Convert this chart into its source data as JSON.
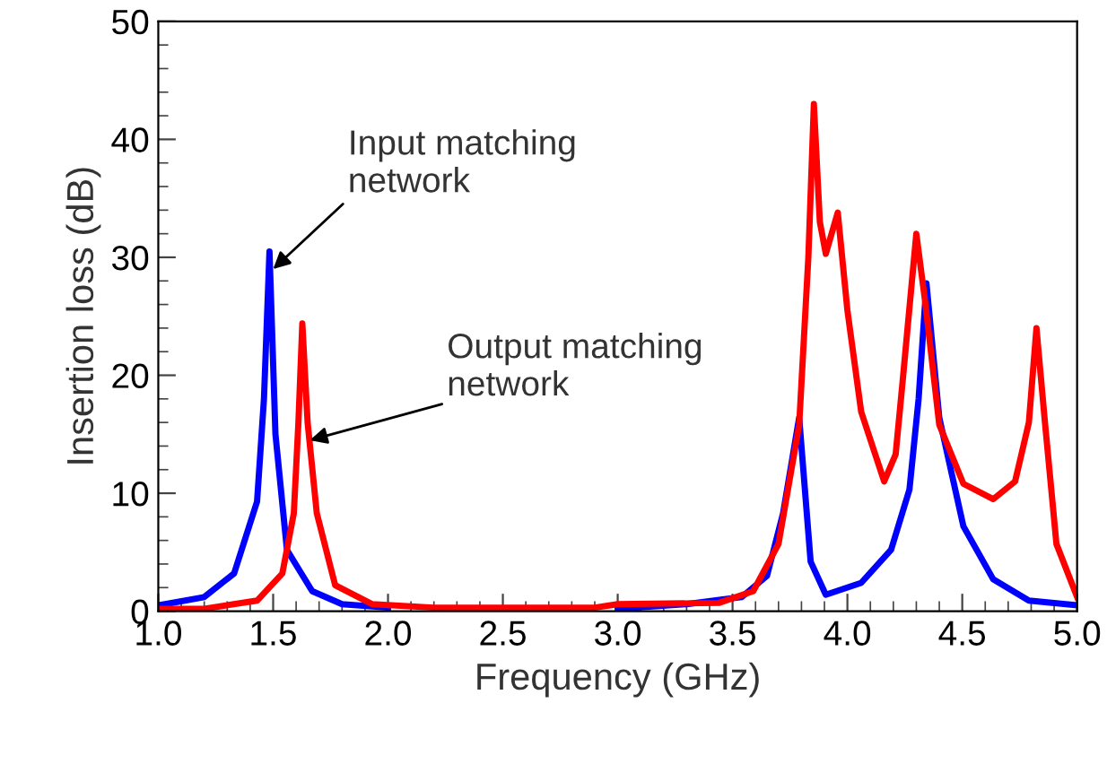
{
  "chart_data": {
    "type": "line",
    "xlabel": "Frequency (GHz)",
    "ylabel": "Insertion loss (dB)",
    "xlim": [
      1.0,
      5.0
    ],
    "ylim": [
      0,
      50
    ],
    "xticks": [
      {
        "value": 1.0,
        "label": "1.0"
      },
      {
        "value": 1.5,
        "label": "1.5"
      },
      {
        "value": 2.0,
        "label": "2.0"
      },
      {
        "value": 2.5,
        "label": "2.5"
      },
      {
        "value": 3.0,
        "label": "3.0"
      },
      {
        "value": 3.5,
        "label": "3.5"
      },
      {
        "value": 4.0,
        "label": "4.0"
      },
      {
        "value": 4.5,
        "label": "4.5"
      },
      {
        "value": 5.0,
        "label": "5.0"
      }
    ],
    "yticks": [
      0,
      10,
      20,
      30,
      40,
      50
    ],
    "grid": false,
    "legend": false,
    "marker": "none",
    "line_style": "solid",
    "series": [
      {
        "color": "#0000ff",
        "x": [
          1.0,
          1.03,
          1.2,
          1.33,
          1.43,
          1.46,
          1.484,
          1.51,
          1.56,
          1.67,
          1.8,
          2.0,
          2.5,
          3.0,
          3.3,
          3.54,
          3.65,
          3.72,
          3.79,
          3.84,
          3.906,
          4.06,
          4.19,
          4.27,
          4.31,
          4.344,
          4.4,
          4.505,
          4.635,
          4.79,
          5.0
        ],
        "values": [
          0.5,
          0.6,
          1.2,
          3.2,
          9.3,
          18,
          30.5,
          15,
          5.2,
          1.7,
          0.6,
          0.3,
          null,
          0.2,
          0.6,
          1.2,
          3.0,
          8.3,
          16.4,
          4.2,
          1.4,
          2.4,
          5.2,
          10.3,
          18,
          27.8,
          16.4,
          7.2,
          2.7,
          0.9,
          0.5
        ]
      },
      {
        "color": "#ff0000",
        "x": [
          1.0,
          1.2,
          1.43,
          1.54,
          1.59,
          1.61,
          1.627,
          1.65,
          1.69,
          1.77,
          1.93,
          2.2,
          2.9,
          3.0,
          3.44,
          3.59,
          3.7,
          3.79,
          3.83,
          3.854,
          3.88,
          3.906,
          3.958,
          4.0,
          4.06,
          4.16,
          4.21,
          4.24,
          4.3,
          4.34,
          4.4,
          4.505,
          4.635,
          4.73,
          4.79,
          4.823,
          4.86,
          4.91,
          5.0
        ],
        "values": [
          0.2,
          0.2,
          0.9,
          3.2,
          8.3,
          16,
          24.4,
          16,
          8.3,
          2.2,
          0.6,
          0.3,
          0.3,
          0.6,
          0.7,
          1.7,
          5.7,
          15.8,
          30,
          43.0,
          33,
          30.3,
          33.8,
          25.5,
          16.9,
          11.0,
          13.3,
          19.4,
          32.0,
          26,
          15.8,
          10.8,
          9.5,
          11.0,
          16,
          24.0,
          16,
          5.7,
          1.2
        ]
      }
    ],
    "annotations": [
      {
        "text": "Input matching\nnetwork",
        "x": 1.5,
        "y": 29
      },
      {
        "text": "Output matching\nnetwork",
        "x": 1.66,
        "y": 14.5
      }
    ]
  }
}
